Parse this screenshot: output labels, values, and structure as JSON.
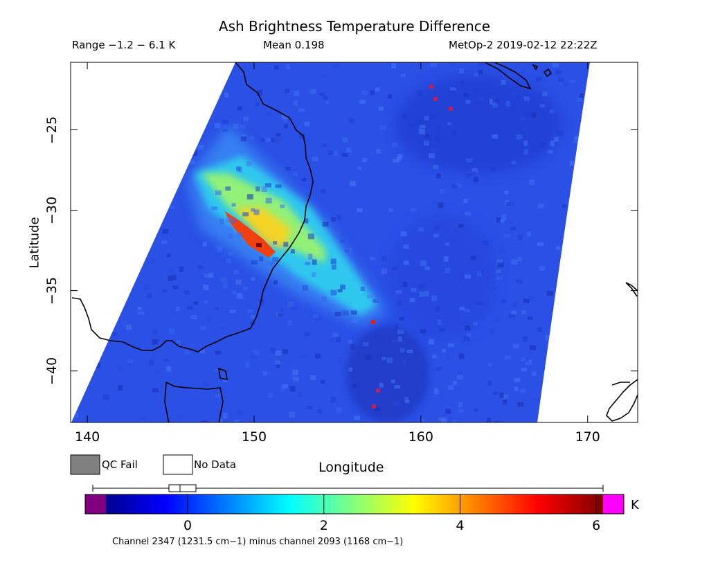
{
  "header": {
    "title": "Ash Brightness Temperature Difference",
    "range": "Range −1.2 − 6.1 K",
    "mean": "Mean 0.198",
    "platform": "MetOp-2 2019-02-12 22:22Z"
  },
  "map": {
    "xlabel": "Longitude",
    "ylabel": "Latitude",
    "lon_range": [
      139,
      173
    ],
    "lat_range": [
      -43.2,
      -20.8
    ],
    "x_ticks": [
      140,
      150,
      160,
      170
    ],
    "x_tick_labels": [
      "140",
      "150",
      "160",
      "170"
    ],
    "y_ticks": [
      -25,
      -30,
      -35,
      -40
    ],
    "y_tick_labels": [
      "−25",
      "−30",
      "−35",
      "−40"
    ]
  },
  "legend": {
    "qc_fail_label": "QC Fail",
    "no_data_label": "No Data",
    "qc_fail_color": "#808080",
    "no_data_color": "#ffffff"
  },
  "colorbar": {
    "unit": "K",
    "min": -1.2,
    "max": 6.1,
    "ticks": [
      0,
      2,
      4,
      6
    ],
    "tick_labels": [
      "0",
      "2",
      "4",
      "6"
    ],
    "under_color": "#800080",
    "over_color": "#ff00ff",
    "caption": "Channel 2347 (1231.5 cm−1) minus channel 2093 (1168 cm−1)"
  },
  "colors": {
    "background_field": "#2a50e6"
  }
}
